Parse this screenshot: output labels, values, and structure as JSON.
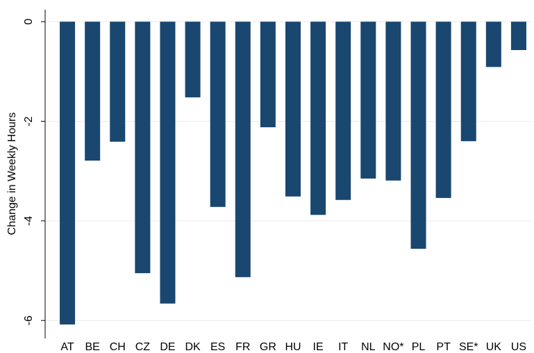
{
  "chart_data": {
    "type": "bar",
    "y_label": "Change in Weekly Hours",
    "categories": [
      "AT",
      "BE",
      "CH",
      "CZ",
      "DE",
      "DK",
      "ES",
      "FR",
      "GR",
      "HU",
      "IE",
      "IT",
      "NL",
      "NO*",
      "PL",
      "PT",
      "SE*",
      "UK",
      "US"
    ],
    "values": [
      -6.08,
      -2.79,
      -2.41,
      -5.05,
      -5.66,
      -1.52,
      -3.72,
      -5.13,
      -2.12,
      -3.51,
      -3.88,
      -3.58,
      -3.15,
      -3.19,
      -4.56,
      -3.54,
      -2.4,
      -0.91,
      -0.57
    ],
    "color": "#1a476f",
    "ylim": [
      -6.36,
      0.24
    ],
    "yticks": [
      0,
      -2,
      -4,
      -6
    ],
    "grid": true
  }
}
